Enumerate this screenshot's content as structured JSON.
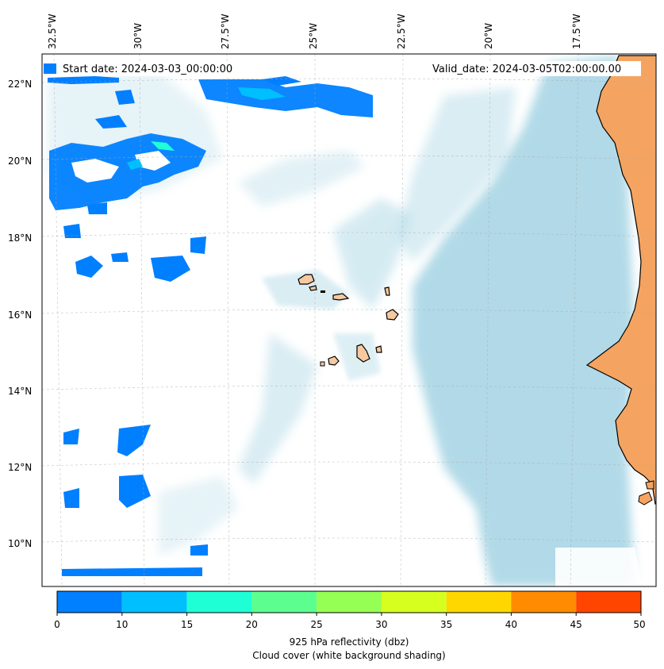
{
  "map": {
    "start_label": "Start date: 2024-03-03_00:00:00",
    "valid_label": "Valid_date: 2024-03-05T02:00:00.00",
    "lon_labels": [
      "32.5°W",
      "30°W",
      "27.5°W",
      "25°W",
      "22.5°W",
      "20°W",
      "17.5°W"
    ],
    "lat_labels": [
      "22°N",
      "20°N",
      "18°N",
      "16°N",
      "14°N",
      "12°N",
      "10°N"
    ],
    "colors": {
      "land": "#f4a460",
      "island": "#f6c9a0",
      "cloud": "#add8e6",
      "coast": "#000000"
    }
  },
  "colorbar": {
    "ticks": [
      "0",
      "10",
      "15",
      "20",
      "25",
      "30",
      "35",
      "40",
      "45",
      "50"
    ],
    "colors": [
      "#007fff",
      "#00bfff",
      "#1fffd6",
      "#5cff8f",
      "#96ff54",
      "#d6ff1f",
      "#ffd700",
      "#ff8c00",
      "#ff4500"
    ],
    "label_line1": "925 hPa reflectivity (dbz)",
    "label_line2": "Cloud cover (white background shading)"
  }
}
